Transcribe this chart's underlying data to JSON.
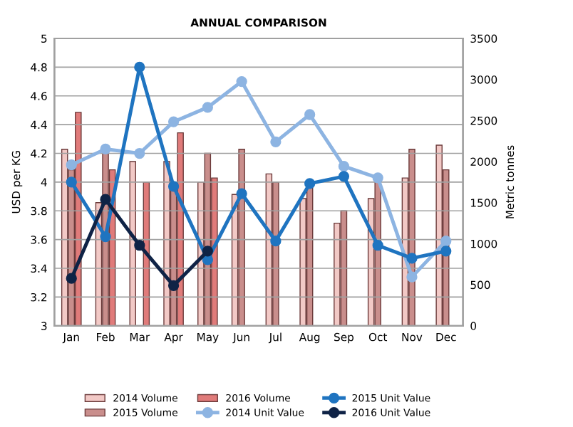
{
  "chart_data": {
    "type": "bar",
    "title": "ANNUAL COMPARISON",
    "ylabel": "USD per KG",
    "y2label": "Metric tonnes",
    "categories": [
      "Jan",
      "Feb",
      "Mar",
      "Apr",
      "May",
      "Jun",
      "Jul",
      "Aug",
      "Sep",
      "Oct",
      "Nov",
      "Dec"
    ],
    "series": [
      {
        "name": "2014 Volume",
        "axis": "y2",
        "color": "#f2c9c6",
        "values": [
          2150,
          1500,
          2000,
          2000,
          1750,
          1600,
          1850,
          1550,
          1250,
          1550,
          1800,
          2200
        ]
      },
      {
        "name": "2015 Volume",
        "axis": "y2",
        "color": "#c98e8c",
        "values": [
          1900,
          2100,
          null,
          1650,
          2100,
          2150,
          1750,
          1700,
          1400,
          1750,
          2150,
          1900
        ]
      },
      {
        "name": "2016 Volume",
        "axis": "y2",
        "color": "#e07b7a",
        "values": [
          2600,
          1900,
          1750,
          2350,
          1800,
          null,
          null,
          null,
          null,
          null,
          null,
          null
        ]
      },
      {
        "name": "2014 Unit Value",
        "type": "line",
        "color": "#8db4e2",
        "values": [
          4.12,
          4.23,
          4.2,
          4.42,
          4.52,
          4.7,
          4.28,
          4.47,
          4.11,
          4.03,
          3.34,
          3.59
        ]
      },
      {
        "name": "2015 Unit Value",
        "type": "line",
        "color": "#1f74c0",
        "values": [
          4.0,
          3.62,
          4.8,
          3.97,
          3.46,
          3.92,
          3.59,
          3.99,
          4.04,
          3.56,
          3.47,
          3.52
        ]
      },
      {
        "name": "2016 Unit Value",
        "type": "line",
        "color": "#0f2346",
        "values": [
          3.33,
          3.88,
          3.56,
          3.28,
          3.52,
          null,
          null,
          null,
          null,
          null,
          null,
          null
        ]
      }
    ],
    "ylim": [
      3,
      5
    ],
    "yticks": [
      3,
      3.2,
      3.4,
      3.6,
      3.8,
      4,
      4.2,
      4.4,
      4.6,
      4.8,
      5
    ],
    "y2lim": [
      0,
      3500
    ],
    "y2ticks": [
      0,
      500,
      1000,
      1500,
      2000,
      2500,
      3000,
      3500
    ],
    "grid": "y",
    "legend": "bottom",
    "marker": "circle",
    "line_style": "solid"
  }
}
